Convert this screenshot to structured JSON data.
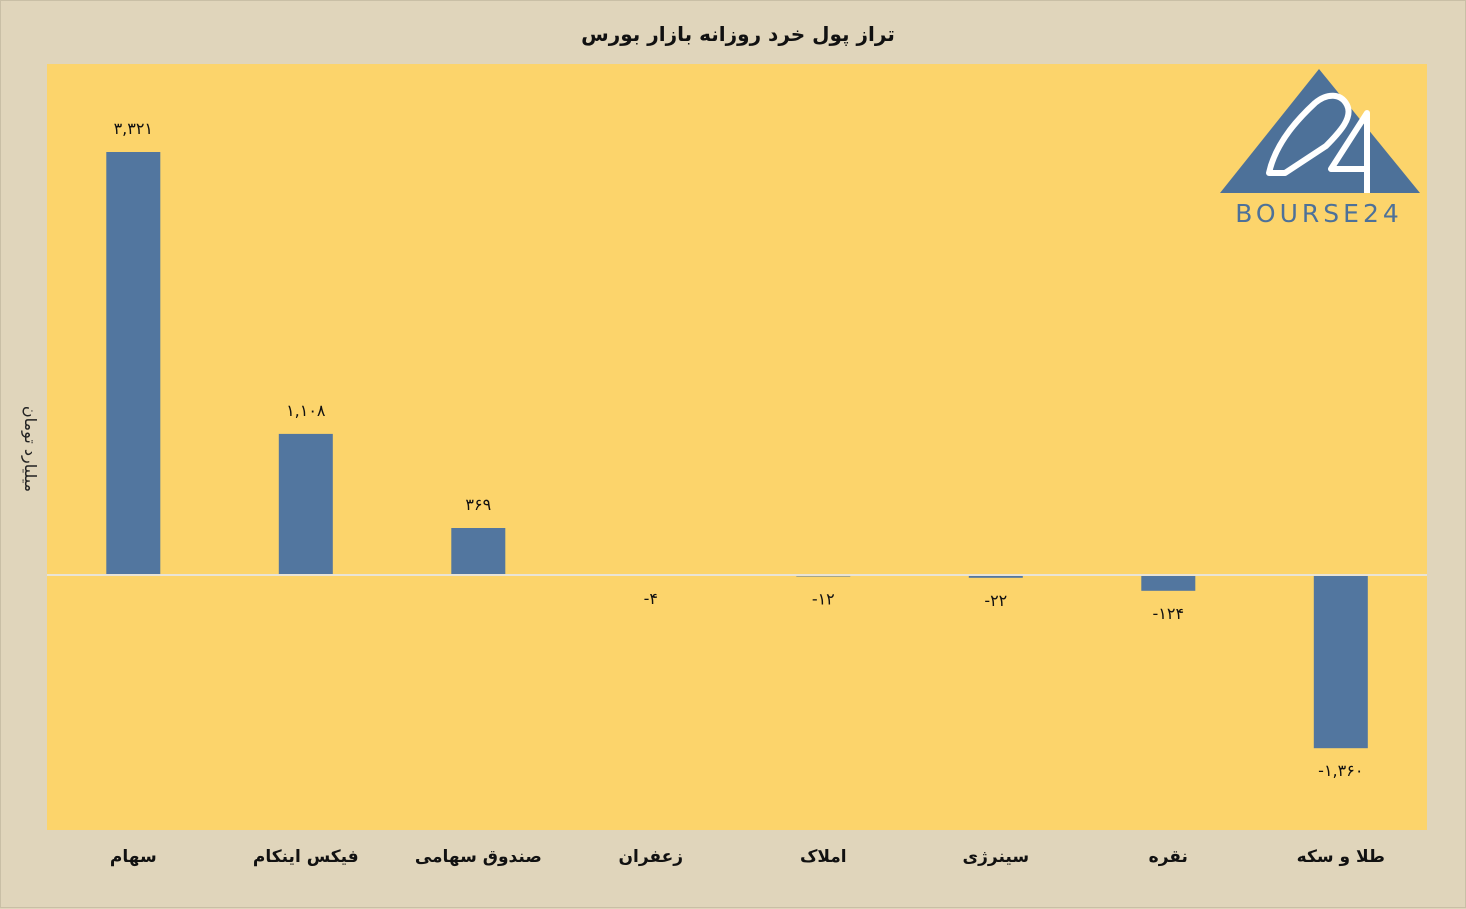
{
  "chart_data": {
    "type": "bar",
    "title": "تراز پول خرد روزانه بازار بورس",
    "xlabel": "",
    "ylabel": "میلیارد تومان",
    "categories": [
      "سهام",
      "فیکس اینکام",
      "صندوق سهامی",
      "زعفران",
      "املاک",
      "سینرژی",
      "نقره",
      "طلا و سکه"
    ],
    "values": [
      3321,
      1108,
      369,
      -4,
      -12,
      -22,
      -124,
      -1360
    ],
    "data_labels": [
      "۳,۳۲۱",
      "۱,۱۰۸",
      "۳۶۹",
      "-۴",
      "-۱۲",
      "-۲۲",
      "-۱۲۴",
      "-۱,۳۶۰"
    ],
    "ylim": [
      -2000,
      3950
    ],
    "grid": false,
    "colors": {
      "bar": "#52769f",
      "plot_background": "#fcd46b",
      "page_background": "#e0d5bb",
      "baseline": "#e9e4d6"
    }
  },
  "logo": {
    "number": "24",
    "text": "BOURSE24",
    "color": "#4d7199"
  }
}
